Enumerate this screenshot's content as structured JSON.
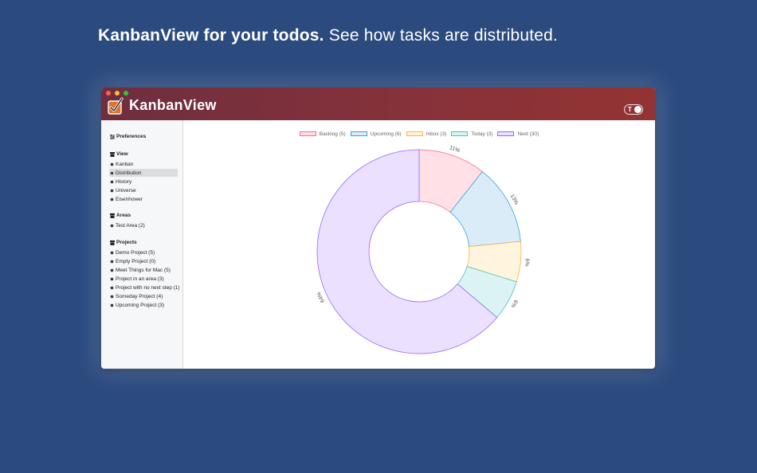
{
  "headline": {
    "bold": "KanbanView for your todos.",
    "rest": "See how tasks are distributed."
  },
  "window": {
    "app_title": "KanbanView",
    "theme_toggle_letter": "T",
    "titlebar_colors": [
      "#6e2e3e",
      "#933333"
    ]
  },
  "sidebar": {
    "preferences": "Preferences",
    "view": {
      "title": "View",
      "items": [
        "Kanban",
        "Distribution",
        "History",
        "Universe",
        "Eisenhower"
      ],
      "active_index": 1
    },
    "areas": {
      "title": "Areas",
      "items": [
        "Test Area (2)"
      ]
    },
    "projects": {
      "title": "Projects",
      "items": [
        "Demo Project (5)",
        "Empty Project (0)",
        "Meet Things for Mac (5)",
        "Project in an area (3)",
        "Project with no next step (1)",
        "Someday Project (4)",
        "Upcoming Project (3)"
      ]
    }
  },
  "chart_data": {
    "type": "doughnut",
    "categories": [
      "Backlog (5)",
      "Upcoming (6)",
      "Inbox  (3)",
      "Today (3)",
      "Next  (30)"
    ],
    "values": [
      5,
      6,
      3,
      3,
      30
    ],
    "percent_labels": [
      "11%",
      "13%",
      "6%",
      "6%",
      "64%"
    ],
    "fill_colors": [
      "#ffe0e6",
      "#dbecf9",
      "#fff4de",
      "#dbf3f3",
      "#ebe1ff"
    ],
    "border_colors": [
      "#ff6a8a",
      "#36a2eb",
      "#ffb14a",
      "#4bc0c0",
      "#9966ff"
    ],
    "legend_position": "top",
    "grid": false
  }
}
